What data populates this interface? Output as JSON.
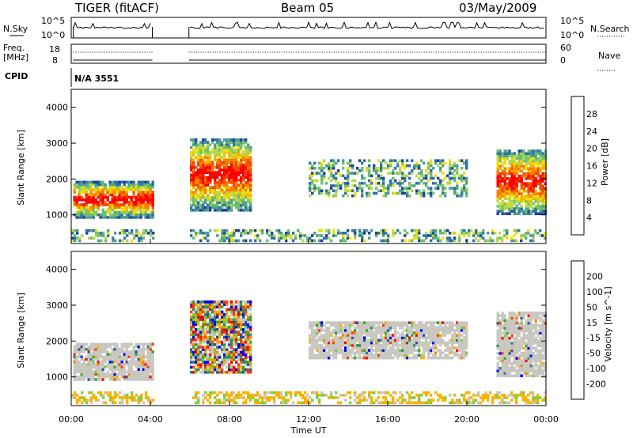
{
  "header": {
    "station": "TIGER (fitACF)",
    "beam": "Beam 05",
    "date": "03/May/2009"
  },
  "side_labels": {
    "nsky": "N.Sky",
    "freq": "Freq.",
    "mhz": "[MHz]",
    "cpid": "CPID",
    "nsearch": "N.Search",
    "nave": "Nave"
  },
  "cpid_value": "N/A 3551",
  "small_ticks": {
    "nsky_left": [
      "10^5",
      "10^0"
    ],
    "nsky_right": [
      "10^5",
      "10^0"
    ],
    "freq_left": [
      "18",
      "8"
    ],
    "nave_right": [
      "60",
      "0"
    ]
  },
  "colors": {
    "power": [
      "#0000ff",
      "#1f3fa0",
      "#2f6fa8",
      "#4f9f8f",
      "#6fbf6f",
      "#b3d94f",
      "#f2e000",
      "#f7b200",
      "#f58000",
      "#f04a00",
      "#ff0000"
    ],
    "velocity": [
      "#ff0000",
      "#f44000",
      "#f58a00",
      "#f5b300",
      "#c8c8c0",
      "#c8c8c0",
      "#7ccf3f",
      "#3fa02a",
      "#2f7f7f",
      "#2f4fa0",
      "#0000ff"
    ]
  },
  "chart_data": [
    {
      "type": "heatmap",
      "title": "",
      "xlabel": "",
      "ylabel": "Slant Range [km]",
      "colorbar_label": "Power [dB]",
      "colorbar_ticks": [
        "4",
        "8",
        "12",
        "16",
        "20",
        "24",
        "28"
      ],
      "ylim": [
        200,
        4500
      ],
      "yticks": [
        "1000",
        "2000",
        "3000",
        "4000"
      ],
      "xlim_hours": [
        0,
        24
      ],
      "data_gaps": [
        [
          4.1,
          5.95
        ]
      ],
      "regions": [
        {
          "t0": 0.1,
          "t1": 4.1,
          "r0": 900,
          "r1": 1900,
          "level": "high"
        },
        {
          "t0": 6.0,
          "t1": 9.0,
          "r0": 1100,
          "r1": 3100,
          "level": "high"
        },
        {
          "t0": 12.0,
          "t1": 20.0,
          "r0": 1500,
          "r1": 2500,
          "level": "low"
        },
        {
          "t0": 21.5,
          "t1": 24.0,
          "r0": 1000,
          "r1": 2800,
          "level": "high"
        },
        {
          "t0": 0.0,
          "t1": 24.0,
          "r0": 250,
          "r1": 550,
          "level": "low"
        }
      ]
    },
    {
      "type": "heatmap",
      "title": "",
      "xlabel": "Time UT",
      "ylabel": "Slant Range [km]",
      "colorbar_label": "Velocity [m s^-1]",
      "colorbar_ticks": [
        "-200",
        "-100",
        "-50",
        "-15",
        "15",
        "50",
        "100",
        "200"
      ],
      "ylim": [
        200,
        4500
      ],
      "yticks": [
        "1000",
        "2000",
        "3000",
        "4000"
      ],
      "xticks": [
        "00:00",
        "04:00",
        "08:00",
        "12:00",
        "16:00",
        "20:00",
        "00:00"
      ],
      "xlim_hours": [
        0,
        24
      ],
      "data_gaps": [
        [
          4.1,
          5.95
        ]
      ],
      "regions": [
        {
          "t0": 0.1,
          "t1": 4.1,
          "r0": 900,
          "r1": 1900,
          "level": "ground"
        },
        {
          "t0": 6.0,
          "t1": 9.0,
          "r0": 1100,
          "r1": 3100,
          "level": "mixed"
        },
        {
          "t0": 12.0,
          "t1": 20.0,
          "r0": 1500,
          "r1": 2500,
          "level": "ground"
        },
        {
          "t0": 21.5,
          "t1": 24.0,
          "r0": 1000,
          "r1": 2800,
          "level": "ground"
        },
        {
          "t0": 0.0,
          "t1": 24.0,
          "r0": 250,
          "r1": 550,
          "level": "negative"
        }
      ]
    }
  ]
}
